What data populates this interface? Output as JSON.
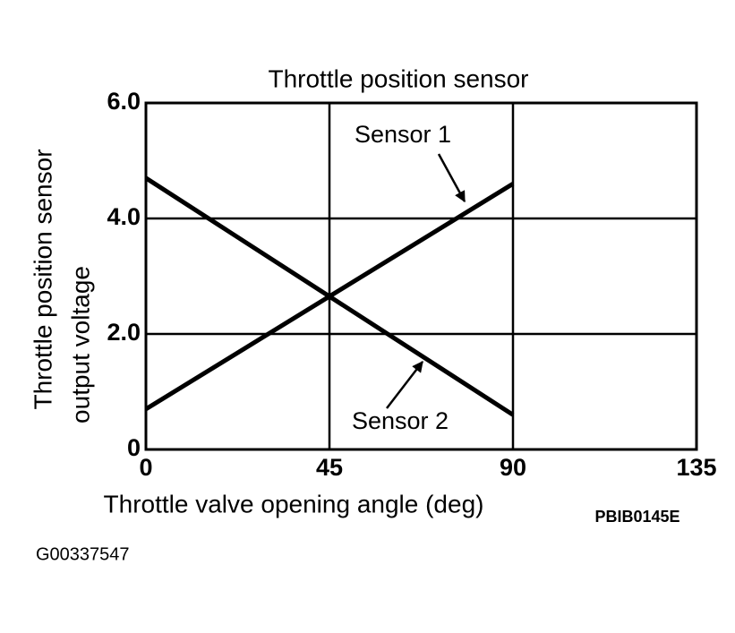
{
  "chart_data": {
    "type": "line",
    "title": "Throttle position sensor",
    "xlabel": "Throttle valve opening angle (deg)",
    "ylabel": [
      "Throttle position sensor",
      "output voltage"
    ],
    "x": [
      0,
      90
    ],
    "series": [
      {
        "name": "Sensor 1",
        "color": "#000000",
        "values": [
          0.7,
          4.6
        ]
      },
      {
        "name": "Sensor 2",
        "color": "#000000",
        "values": [
          4.7,
          0.6
        ]
      }
    ],
    "xlim": [
      0,
      135
    ],
    "ylim": [
      0,
      6
    ],
    "xticks": [
      0,
      45,
      90,
      135
    ],
    "yticks": [
      0,
      {
        "value": 2,
        "label": "2.0"
      },
      {
        "value": 4,
        "label": "4.0"
      },
      {
        "value": 6,
        "label": "6.0"
      }
    ],
    "grid": true,
    "annotations": [
      "PBIB0145E",
      "G00337547"
    ]
  }
}
